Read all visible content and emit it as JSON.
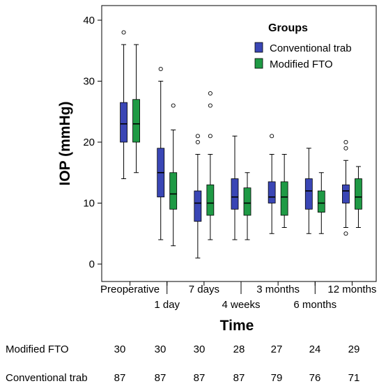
{
  "chart_data": {
    "type": "boxplot",
    "xlabel": "Time",
    "ylabel": "IOP (mmHg)",
    "ylim": [
      -2,
      44
    ],
    "yticks": [
      0,
      10,
      20,
      30,
      40
    ],
    "categories": [
      "Preoperative",
      "1 day",
      "7 days",
      "4 weeks",
      "3 months",
      "6 months",
      "12 months"
    ],
    "legend": {
      "title": "Groups",
      "placement": "top-right"
    },
    "colors": {
      "Conventional trab": "#3a46b5",
      "Modified FTO": "#1f9a45"
    },
    "series": [
      {
        "name": "Conventional trab",
        "boxes": [
          {
            "whisker_low": 14,
            "q1": 20,
            "median": 23,
            "q3": 26.5,
            "whisker_high": 36,
            "outliers": [
              38
            ]
          },
          {
            "whisker_low": 4,
            "q1": 11,
            "median": 15,
            "q3": 19,
            "whisker_high": 30,
            "outliers": [
              32
            ]
          },
          {
            "whisker_low": 1,
            "q1": 7,
            "median": 10,
            "q3": 12,
            "whisker_high": 18,
            "outliers": [
              20,
              21
            ]
          },
          {
            "whisker_low": 4,
            "q1": 9,
            "median": 11,
            "q3": 14,
            "whisker_high": 21,
            "outliers": []
          },
          {
            "whisker_low": 5,
            "q1": 10,
            "median": 11,
            "q3": 13.5,
            "whisker_high": 18,
            "outliers": [
              21
            ]
          },
          {
            "whisker_low": 5,
            "q1": 9,
            "median": 12,
            "q3": 14,
            "whisker_high": 19,
            "outliers": []
          },
          {
            "whisker_low": 6,
            "q1": 10,
            "median": 12,
            "q3": 13,
            "whisker_high": 17,
            "outliers": [
              5,
              19,
              20
            ]
          }
        ]
      },
      {
        "name": "Modified FTO",
        "boxes": [
          {
            "whisker_low": 15,
            "q1": 20,
            "median": 23,
            "q3": 27,
            "whisker_high": 36,
            "outliers": []
          },
          {
            "whisker_low": 3,
            "q1": 9,
            "median": 11.5,
            "q3": 15,
            "whisker_high": 22,
            "outliers": [
              26
            ]
          },
          {
            "whisker_low": 4,
            "q1": 8,
            "median": 10,
            "q3": 13,
            "whisker_high": 18,
            "outliers": [
              21,
              26,
              28
            ]
          },
          {
            "whisker_low": 4,
            "q1": 8,
            "median": 10,
            "q3": 12.5,
            "whisker_high": 15,
            "outliers": []
          },
          {
            "whisker_low": 6,
            "q1": 8,
            "median": 11,
            "q3": 13.5,
            "whisker_high": 18,
            "outliers": []
          },
          {
            "whisker_low": 5,
            "q1": 8.5,
            "median": 10,
            "q3": 12,
            "whisker_high": 15,
            "outliers": []
          },
          {
            "whisker_low": 6,
            "q1": 9,
            "median": 11,
            "q3": 14,
            "whisker_high": 16,
            "outliers": []
          }
        ]
      }
    ],
    "counts": [
      {
        "label": "Modified FTO",
        "values": [
          30,
          30,
          30,
          28,
          27,
          24,
          29
        ]
      },
      {
        "label": "Conventional trab",
        "values": [
          87,
          87,
          87,
          87,
          79,
          76,
          71
        ]
      }
    ]
  }
}
